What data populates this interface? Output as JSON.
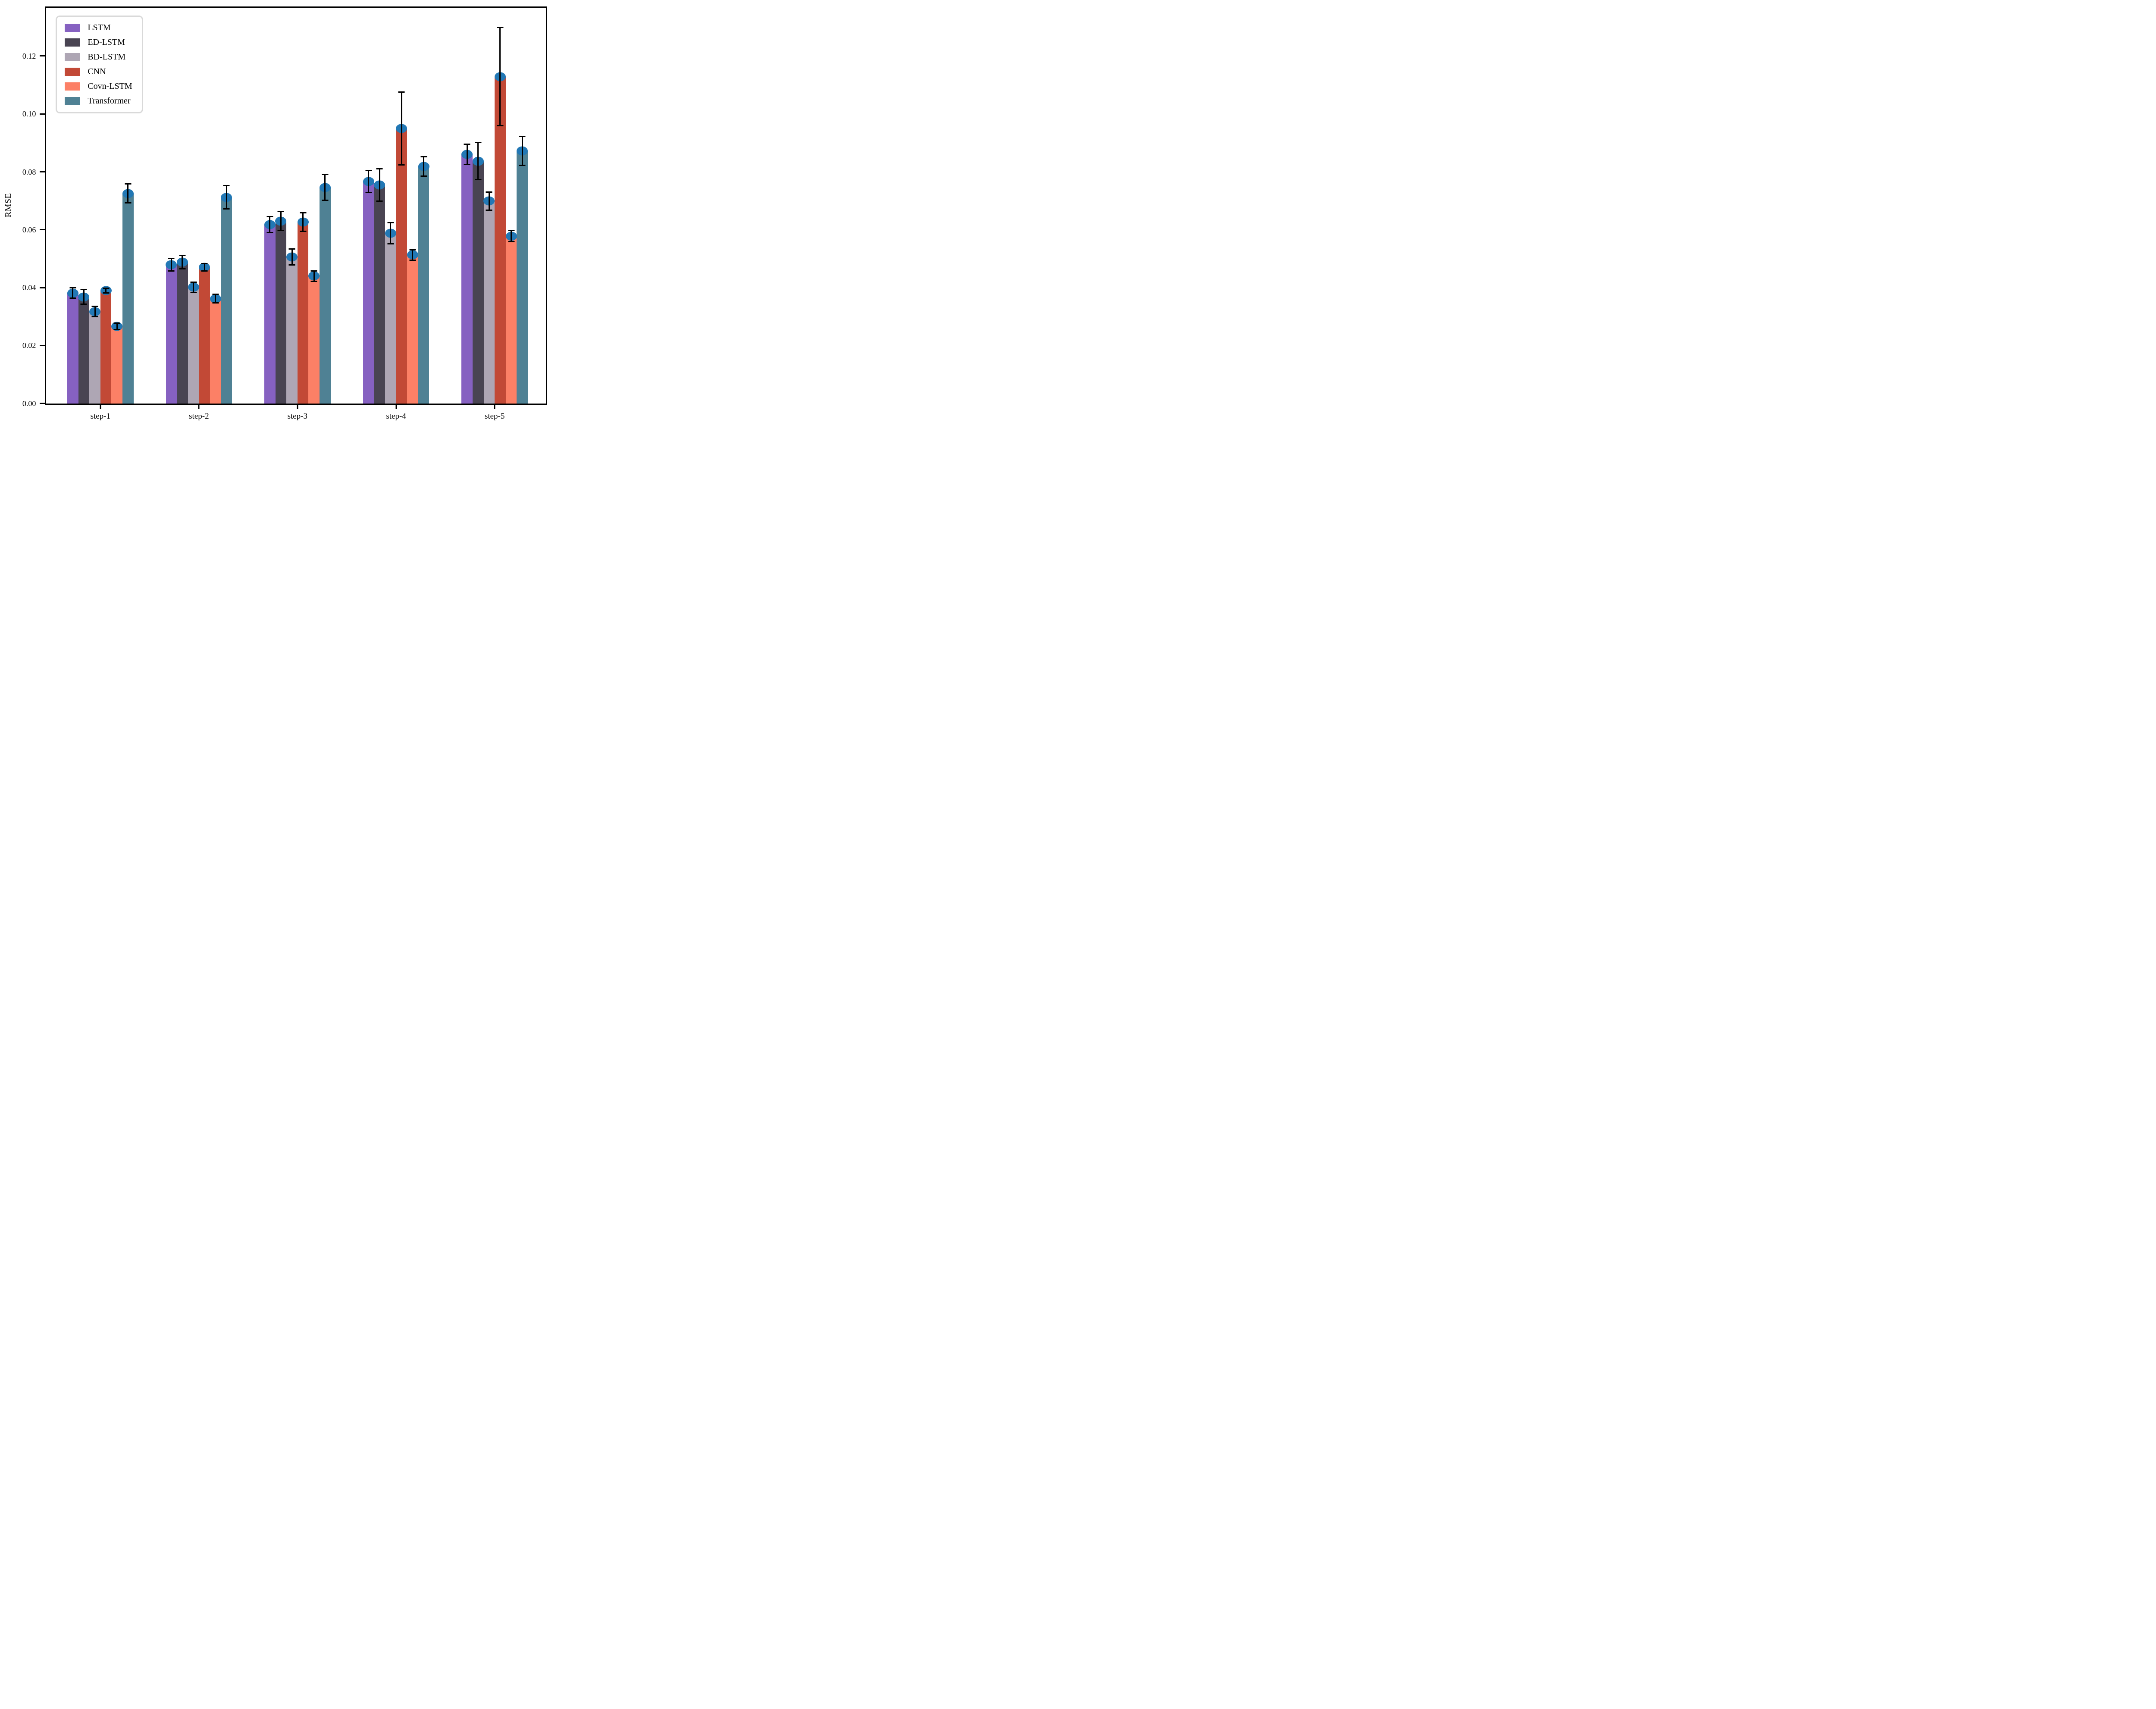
{
  "figure": {
    "background": "#ffffff",
    "spine_color": "#000000"
  },
  "chart_data": {
    "type": "bar",
    "title": "",
    "xlabel": "",
    "ylabel": "RMSE",
    "categories": [
      "step-1",
      "step-2",
      "step-3",
      "step-4",
      "step-5"
    ],
    "yticks": [
      0,
      0.02,
      0.04,
      0.06,
      0.08,
      0.1,
      0.12
    ],
    "ytick_labels": [
      "0.00",
      "0.02",
      "0.04",
      "0.06",
      "0.08",
      "0.10",
      "0.12"
    ],
    "ylim": [
      0,
      0.1366
    ],
    "grid": false,
    "legend_position": "upper left",
    "legend_entries": [
      "LSTM",
      "ED-LSTM",
      "BD-LSTM",
      "CNN",
      "Covn-LSTM",
      "Transformer"
    ],
    "error_bar_color": "#000000",
    "marker": {
      "shape": "ellipse",
      "color": "#2278b5"
    },
    "series": [
      {
        "name": "LSTM",
        "color": "#8661c1",
        "values": [
          0.0381,
          0.0479,
          0.0618,
          0.0767,
          0.086
        ],
        "errors": [
          0.002,
          0.0024,
          0.003,
          0.004,
          0.0037
        ]
      },
      {
        "name": "ED-LSTM",
        "color": "#494452",
        "values": [
          0.0368,
          0.0488,
          0.063,
          0.0755,
          0.0837
        ],
        "errors": [
          0.0028,
          0.0025,
          0.0035,
          0.0058,
          0.0066
        ]
      },
      {
        "name": "BD-LSTM",
        "color": "#aea6b4",
        "values": [
          0.0317,
          0.0401,
          0.0506,
          0.0588,
          0.0699
        ],
        "errors": [
          0.002,
          0.002,
          0.003,
          0.0039,
          0.0034
        ]
      },
      {
        "name": "CNN",
        "color": "#c24936",
        "values": [
          0.039,
          0.047,
          0.0627,
          0.095,
          0.1129
        ],
        "errors": [
          0.001,
          0.0015,
          0.0034,
          0.0128,
          0.0172
        ]
      },
      {
        "name": "Covn-LSTM",
        "color": "#fc8066",
        "values": [
          0.0266,
          0.0362,
          0.044,
          0.0513,
          0.0578
        ],
        "errors": [
          0.0013,
          0.0017,
          0.002,
          0.002,
          0.0021
        ]
      },
      {
        "name": "Transformer",
        "color": "#4f8194",
        "values": [
          0.0725,
          0.0712,
          0.0746,
          0.0819,
          0.0872
        ],
        "errors": [
          0.0035,
          0.0042,
          0.0047,
          0.0036,
          0.0052
        ]
      }
    ],
    "layout": {
      "group_centers_pct": [
        10.83,
        30.56,
        50.28,
        70.03,
        89.76
      ],
      "bar_width_pct": 2.21
    }
  }
}
